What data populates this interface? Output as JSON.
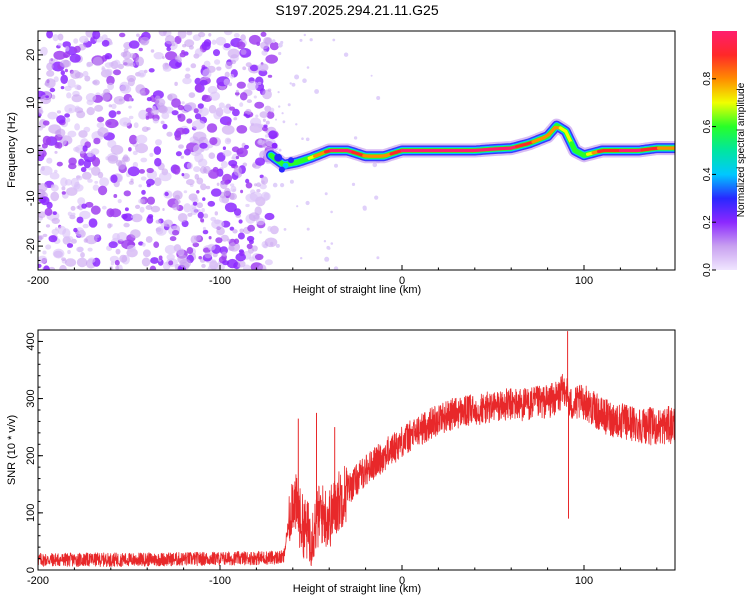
{
  "title": "S197.2025.294.21.11.G25",
  "chart_data": [
    {
      "type": "heatmap",
      "name": "spectrogram",
      "xlabel": "Height of straight line (km)",
      "ylabel": "Frequency (Hz)",
      "xlim": [
        -200,
        150
      ],
      "ylim": [
        -25,
        25
      ],
      "xticks": [
        -200,
        -100,
        0,
        100
      ],
      "yticks": [
        -20,
        -10,
        0,
        10,
        20
      ],
      "noise_region_x": [
        -200,
        -70
      ],
      "ridge": {
        "x": [
          -72,
          -65,
          -58,
          -50,
          -40,
          -30,
          -20,
          -10,
          0,
          10,
          20,
          30,
          40,
          50,
          60,
          70,
          80,
          85,
          90,
          95,
          100,
          110,
          120,
          130,
          140,
          150
        ],
        "freq_hz": [
          -1.0,
          -3.0,
          -2.5,
          -1.5,
          0.0,
          0.0,
          -1.2,
          -1.2,
          0.0,
          0.0,
          0.0,
          0.0,
          0.0,
          0.3,
          0.5,
          1.5,
          3.0,
          5.2,
          4.0,
          0.0,
          -1.0,
          0.0,
          0.0,
          0.0,
          0.5,
          0.5
        ],
        "amplitude": [
          0.3,
          0.45,
          0.55,
          0.7,
          0.95,
          0.95,
          0.8,
          0.8,
          0.95,
          0.95,
          0.95,
          0.95,
          0.95,
          0.95,
          0.95,
          0.85,
          0.8,
          0.75,
          0.7,
          0.6,
          0.65,
          0.9,
          0.95,
          0.95,
          0.85,
          0.8
        ]
      },
      "colorbar": {
        "label": "Normalized spectral amplitude",
        "ticks": [
          0.0,
          0.2,
          0.4,
          0.6,
          0.8
        ],
        "tick_labels": [
          "0.0",
          "0.2",
          "0.4",
          "0.6",
          "0.8"
        ],
        "colors": [
          "#f0e6ff",
          "#c8a0f0",
          "#8c28ff",
          "#2828ff",
          "#00c8ff",
          "#00e6a0",
          "#28ff28",
          "#f0ff00",
          "#ff8c00",
          "#ff2828",
          "#ff1e6e"
        ]
      }
    },
    {
      "type": "line",
      "name": "snr",
      "xlabel": "Height of straight line (km)",
      "ylabel": "SNR (10 * v/v)",
      "xlim": [
        -200,
        150
      ],
      "ylim": [
        0,
        420
      ],
      "xticks": [
        -200,
        -100,
        0,
        100
      ],
      "yticks": [
        0,
        100,
        200,
        300,
        400
      ],
      "color": "#e8282a",
      "envelope": {
        "x": [
          -200,
          -150,
          -100,
          -65,
          -60,
          -55,
          -50,
          -45,
          -40,
          -35,
          -30,
          -20,
          -10,
          0,
          10,
          20,
          30,
          40,
          50,
          60,
          70,
          80,
          85,
          90,
          92,
          95,
          100,
          110,
          120,
          130,
          140,
          150
        ],
        "snr": [
          18,
          18,
          20,
          22,
          130,
          80,
          60,
          100,
          90,
          120,
          140,
          175,
          200,
          225,
          245,
          265,
          275,
          280,
          285,
          290,
          290,
          295,
          300,
          320,
          290,
          290,
          295,
          270,
          260,
          255,
          250,
          255
        ]
      },
      "spikes": [
        {
          "x": -57,
          "snr": 265
        },
        {
          "x": -47,
          "snr": 275
        },
        {
          "x": -37,
          "snr": 250
        },
        {
          "x": 91,
          "snr": 418
        },
        {
          "x": 91.5,
          "snr": 90
        }
      ]
    }
  ]
}
